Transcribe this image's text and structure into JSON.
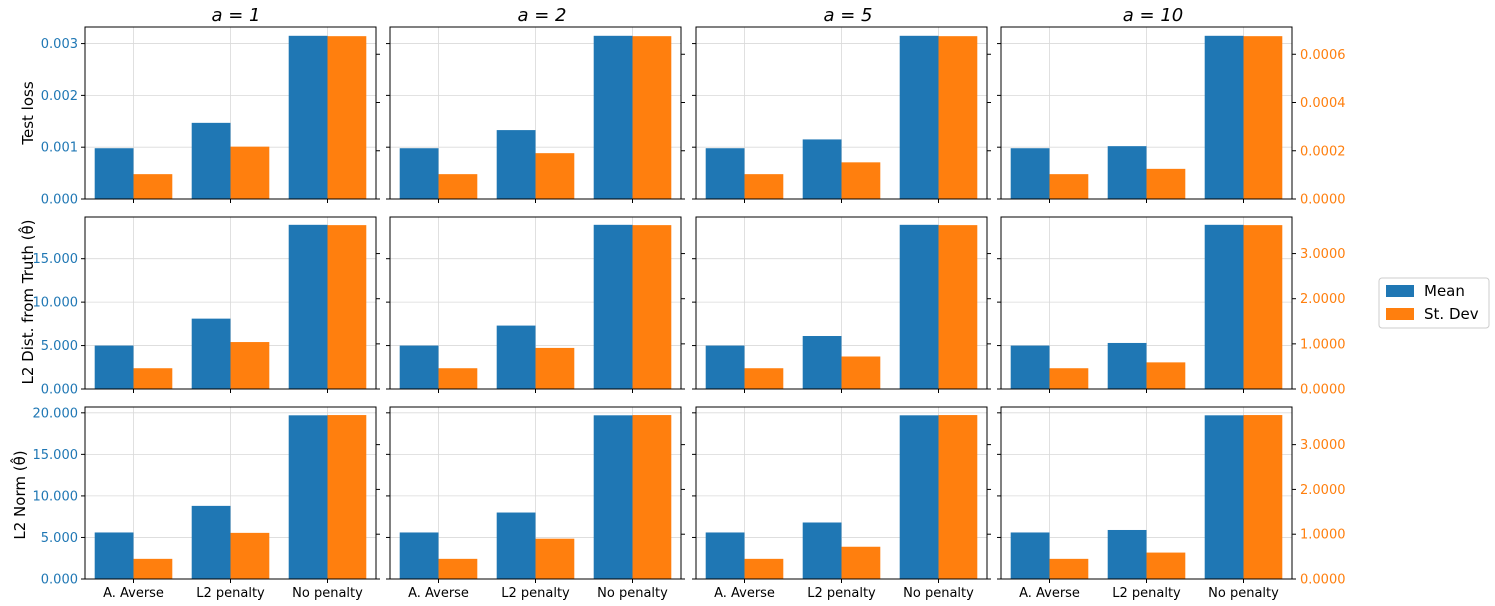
{
  "figure": {
    "colors": {
      "mean": "#1f77b4",
      "std": "#ff7f0e",
      "grid": "#d9d9d9",
      "axis": "#000000"
    }
  },
  "legend": {
    "items": [
      "Mean",
      "St. Dev"
    ],
    "placement": "right"
  },
  "column_titles": [
    "a = 1",
    "a = 2",
    "a = 5",
    "a = 10"
  ],
  "row_labels": [
    "Test loss",
    "L2 Dist. from Truth (θ̂)",
    "L2 Norm (θ̂)"
  ],
  "chart_data": [
    {
      "type": "bar",
      "row_label": "Test loss",
      "categories": [
        "A. Averse",
        "L2 penalty",
        "No penalty"
      ],
      "left_axis": {
        "ylim": [
          0,
          0.00332
        ],
        "ticks": [
          0,
          0.001,
          0.002,
          0.003
        ],
        "tick_labels": [
          "0.000",
          "0.001",
          "0.002",
          "0.003"
        ],
        "color": "#1f77b4"
      },
      "right_axis": {
        "ylim": [
          0,
          0.000713
        ],
        "ticks": [
          0,
          0.0002,
          0.0004,
          0.0006
        ],
        "tick_labels": [
          "0.0000",
          "0.0002",
          "0.0004",
          "0.0006"
        ],
        "color": "#ff7f0e"
      },
      "panels": [
        {
          "title": "a = 1",
          "series": [
            {
              "name": "Mean",
              "axis": "left",
              "values": [
                0.00098,
                0.00147,
                0.00315
              ]
            },
            {
              "name": "St. Dev",
              "axis": "right",
              "values": [
                0.000103,
                0.000217,
                0.000675
              ]
            }
          ]
        },
        {
          "title": "a = 2",
          "series": [
            {
              "name": "Mean",
              "axis": "left",
              "values": [
                0.00098,
                0.00133,
                0.00315
              ]
            },
            {
              "name": "St. Dev",
              "axis": "right",
              "values": [
                0.000103,
                0.00019,
                0.000675
              ]
            }
          ]
        },
        {
          "title": "a = 5",
          "series": [
            {
              "name": "Mean",
              "axis": "left",
              "values": [
                0.00098,
                0.00115,
                0.00315
              ]
            },
            {
              "name": "St. Dev",
              "axis": "right",
              "values": [
                0.000103,
                0.000152,
                0.000675
              ]
            }
          ]
        },
        {
          "title": "a = 10",
          "series": [
            {
              "name": "Mean",
              "axis": "left",
              "values": [
                0.00098,
                0.00102,
                0.00315
              ]
            },
            {
              "name": "St. Dev",
              "axis": "right",
              "values": [
                0.000103,
                0.000125,
                0.000675
              ]
            }
          ]
        }
      ]
    },
    {
      "type": "bar",
      "row_label": "L2 Dist. from Truth (θ̂)",
      "categories": [
        "A. Averse",
        "L2 penalty",
        "No penalty"
      ],
      "left_axis": {
        "ylim": [
          0,
          19.8
        ],
        "ticks": [
          0,
          5,
          10,
          15
        ],
        "tick_labels": [
          "0.000",
          "5.000",
          "10.000",
          "15.000"
        ],
        "color": "#1f77b4"
      },
      "right_axis": {
        "ylim": [
          0,
          3.81
        ],
        "ticks": [
          0,
          1,
          2,
          3
        ],
        "tick_labels": [
          "0.0000",
          "1.0000",
          "2.0000",
          "3.0000"
        ],
        "color": "#ff7f0e"
      },
      "panels": [
        {
          "title": "a = 1",
          "series": [
            {
              "name": "Mean",
              "axis": "left",
              "values": [
                5.0,
                8.1,
                18.9
              ]
            },
            {
              "name": "St. Dev",
              "axis": "right",
              "values": [
                0.46,
                1.04,
                3.63
              ]
            }
          ]
        },
        {
          "title": "a = 2",
          "series": [
            {
              "name": "Mean",
              "axis": "left",
              "values": [
                5.0,
                7.3,
                18.9
              ]
            },
            {
              "name": "St. Dev",
              "axis": "right",
              "values": [
                0.46,
                0.91,
                3.63
              ]
            }
          ]
        },
        {
          "title": "a = 5",
          "series": [
            {
              "name": "Mean",
              "axis": "left",
              "values": [
                5.0,
                6.1,
                18.9
              ]
            },
            {
              "name": "St. Dev",
              "axis": "right",
              "values": [
                0.46,
                0.72,
                3.63
              ]
            }
          ]
        },
        {
          "title": "a = 10",
          "series": [
            {
              "name": "Mean",
              "axis": "left",
              "values": [
                5.0,
                5.3,
                18.9
              ]
            },
            {
              "name": "St. Dev",
              "axis": "right",
              "values": [
                0.46,
                0.59,
                3.63
              ]
            }
          ]
        }
      ]
    },
    {
      "type": "bar",
      "row_label": "L2 Norm (θ̂)",
      "categories": [
        "A. Averse",
        "L2 penalty",
        "No penalty"
      ],
      "left_axis": {
        "ylim": [
          0,
          20.7
        ],
        "ticks": [
          0,
          5,
          10,
          15,
          20
        ],
        "tick_labels": [
          "0.000",
          "5.000",
          "10.000",
          "15.000",
          "20.000"
        ],
        "color": "#1f77b4"
      },
      "right_axis": {
        "ylim": [
          0,
          3.84
        ],
        "ticks": [
          0,
          1,
          2,
          3
        ],
        "tick_labels": [
          "0.0000",
          "1.0000",
          "2.0000",
          "3.0000"
        ],
        "color": "#ff7f0e"
      },
      "panels": [
        {
          "title": "a = 1",
          "series": [
            {
              "name": "Mean",
              "axis": "left",
              "values": [
                5.6,
                8.8,
                19.7
              ]
            },
            {
              "name": "St. Dev",
              "axis": "right",
              "values": [
                0.45,
                1.03,
                3.66
              ]
            }
          ]
        },
        {
          "title": "a = 2",
          "series": [
            {
              "name": "Mean",
              "axis": "left",
              "values": [
                5.6,
                8.0,
                19.7
              ]
            },
            {
              "name": "St. Dev",
              "axis": "right",
              "values": [
                0.45,
                0.9,
                3.66
              ]
            }
          ]
        },
        {
          "title": "a = 5",
          "series": [
            {
              "name": "Mean",
              "axis": "left",
              "values": [
                5.6,
                6.8,
                19.7
              ]
            },
            {
              "name": "St. Dev",
              "axis": "right",
              "values": [
                0.45,
                0.72,
                3.66
              ]
            }
          ]
        },
        {
          "title": "a = 10",
          "series": [
            {
              "name": "Mean",
              "axis": "left",
              "values": [
                5.6,
                5.9,
                19.7
              ]
            },
            {
              "name": "St. Dev",
              "axis": "right",
              "values": [
                0.45,
                0.59,
                3.66
              ]
            }
          ]
        }
      ]
    }
  ]
}
